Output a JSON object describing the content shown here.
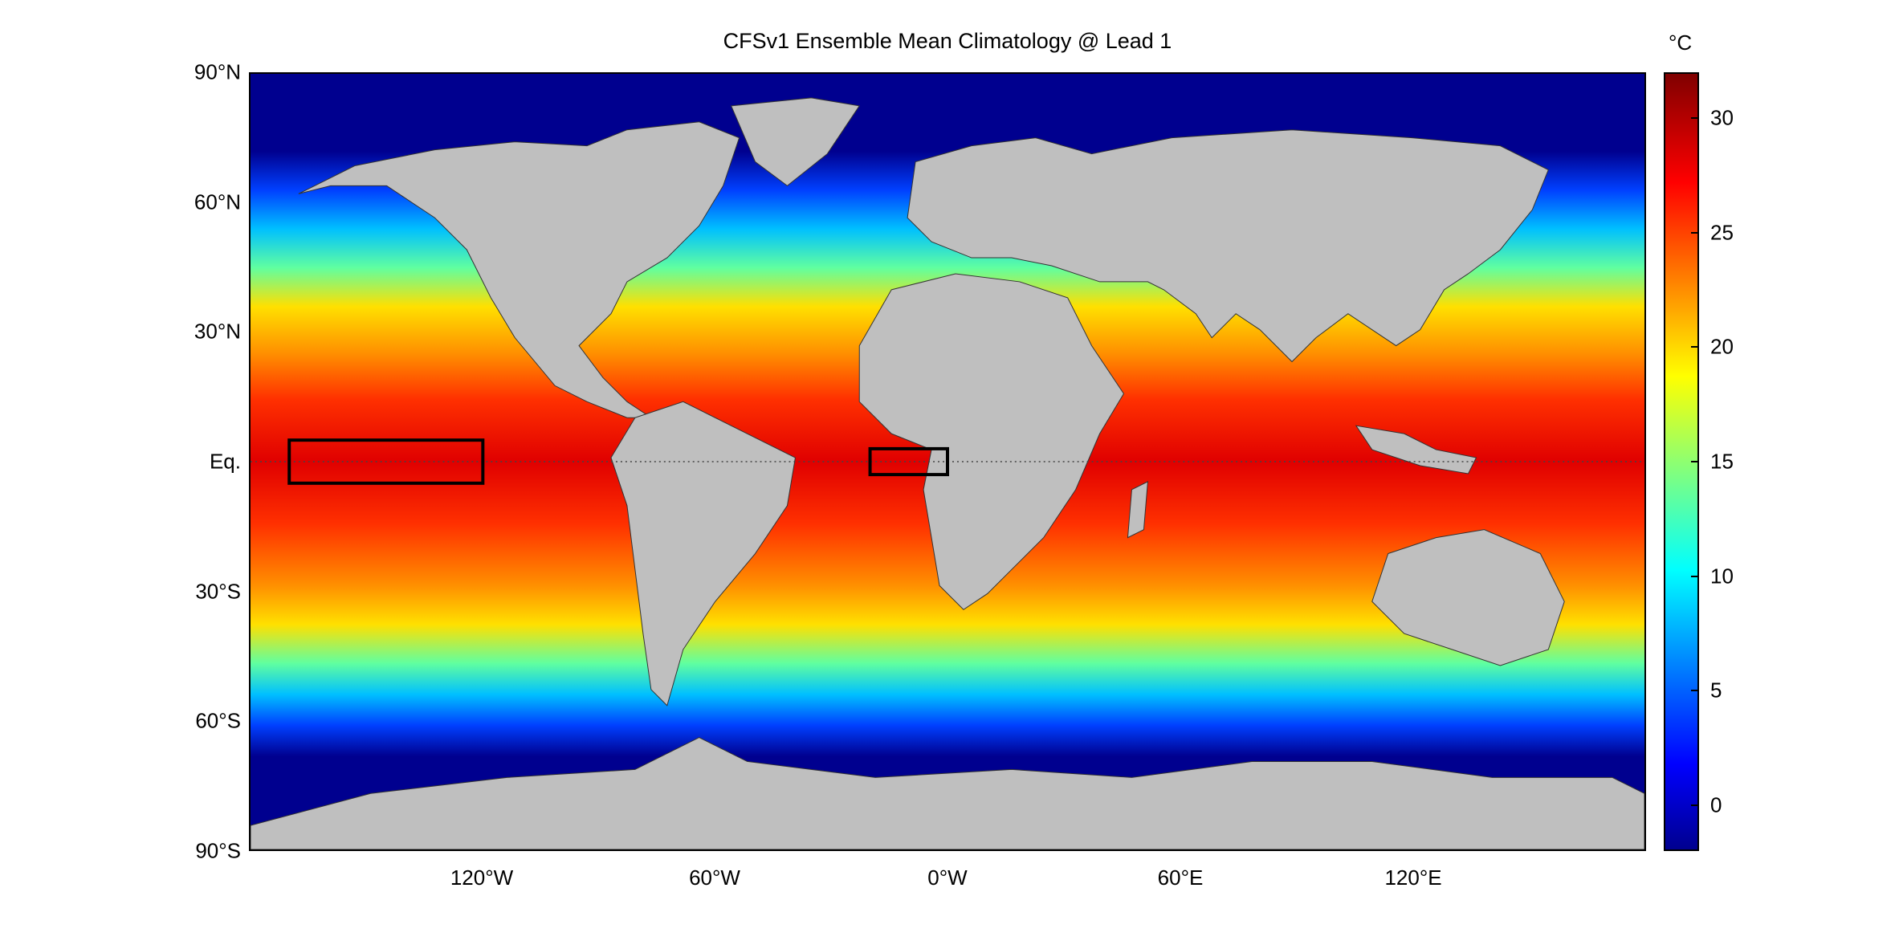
{
  "title": "CFSv1 Ensemble Mean Climatology @ Lead 1",
  "map": {
    "projection": "equirectangular",
    "lon_range": [
      -180,
      180
    ],
    "lat_range": [
      -90,
      90
    ],
    "y_ticks": [
      {
        "lat": 90,
        "label": "90°N"
      },
      {
        "lat": 60,
        "label": "60°N"
      },
      {
        "lat": 30,
        "label": "30°N"
      },
      {
        "lat": 0,
        "label": "Eq."
      },
      {
        "lat": -30,
        "label": "30°S"
      },
      {
        "lat": -60,
        "label": "60°S"
      },
      {
        "lat": -90,
        "label": "90°S"
      }
    ],
    "x_ticks": [
      {
        "lon": -120,
        "label": "120°W"
      },
      {
        "lon": -60,
        "label": "60°W"
      },
      {
        "lon": 0,
        "label": "0°W"
      },
      {
        "lon": 60,
        "label": "60°E"
      },
      {
        "lon": 120,
        "label": "120°E"
      }
    ],
    "boxes": [
      {
        "lon": [
          -170,
          -120
        ],
        "lat": [
          -5,
          5
        ]
      },
      {
        "lon": [
          -20,
          0
        ],
        "lat": [
          -3,
          3
        ]
      }
    ],
    "equator_line": "dotted",
    "land_color": "#bfbfbf",
    "ocean_cold_color": "#00008f"
  },
  "colorbar": {
    "unit": "°C",
    "min": -2,
    "max": 32,
    "ticks": [
      0,
      5,
      10,
      15,
      20,
      25,
      30
    ],
    "colormap": "jet"
  }
}
